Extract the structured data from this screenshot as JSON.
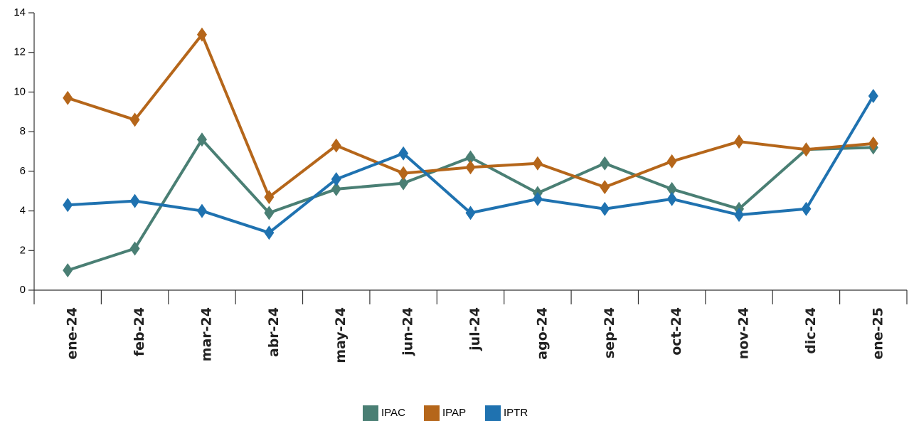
{
  "chart_data": {
    "type": "line",
    "categories": [
      "ene-24",
      "feb-24",
      "mar-24",
      "abr-24",
      "may-24",
      "jun-24",
      "jul-24",
      "ago-24",
      "sep-24",
      "oct-24",
      "nov-24",
      "dic-24",
      "ene-25"
    ],
    "series": [
      {
        "name": "IPAC",
        "color": "#4a7f74",
        "values": [
          1.0,
          2.1,
          7.6,
          3.9,
          5.1,
          5.4,
          6.7,
          4.9,
          6.4,
          5.1,
          4.1,
          7.1,
          7.2
        ]
      },
      {
        "name": "IPAP",
        "color": "#b5661a",
        "values": [
          9.7,
          8.6,
          12.9,
          4.7,
          7.3,
          5.9,
          6.2,
          6.4,
          5.2,
          6.5,
          7.5,
          7.1,
          7.4
        ]
      },
      {
        "name": "IPTR",
        "color": "#1f72b0",
        "values": [
          4.3,
          4.5,
          4.0,
          2.9,
          5.6,
          6.9,
          3.9,
          4.6,
          4.1,
          4.6,
          3.8,
          4.1,
          9.8
        ]
      }
    ],
    "ylim": [
      0,
      14
    ],
    "yticks": [
      0,
      2,
      4,
      6,
      8,
      10,
      12,
      14
    ],
    "legend": "bottom",
    "grid": false
  }
}
